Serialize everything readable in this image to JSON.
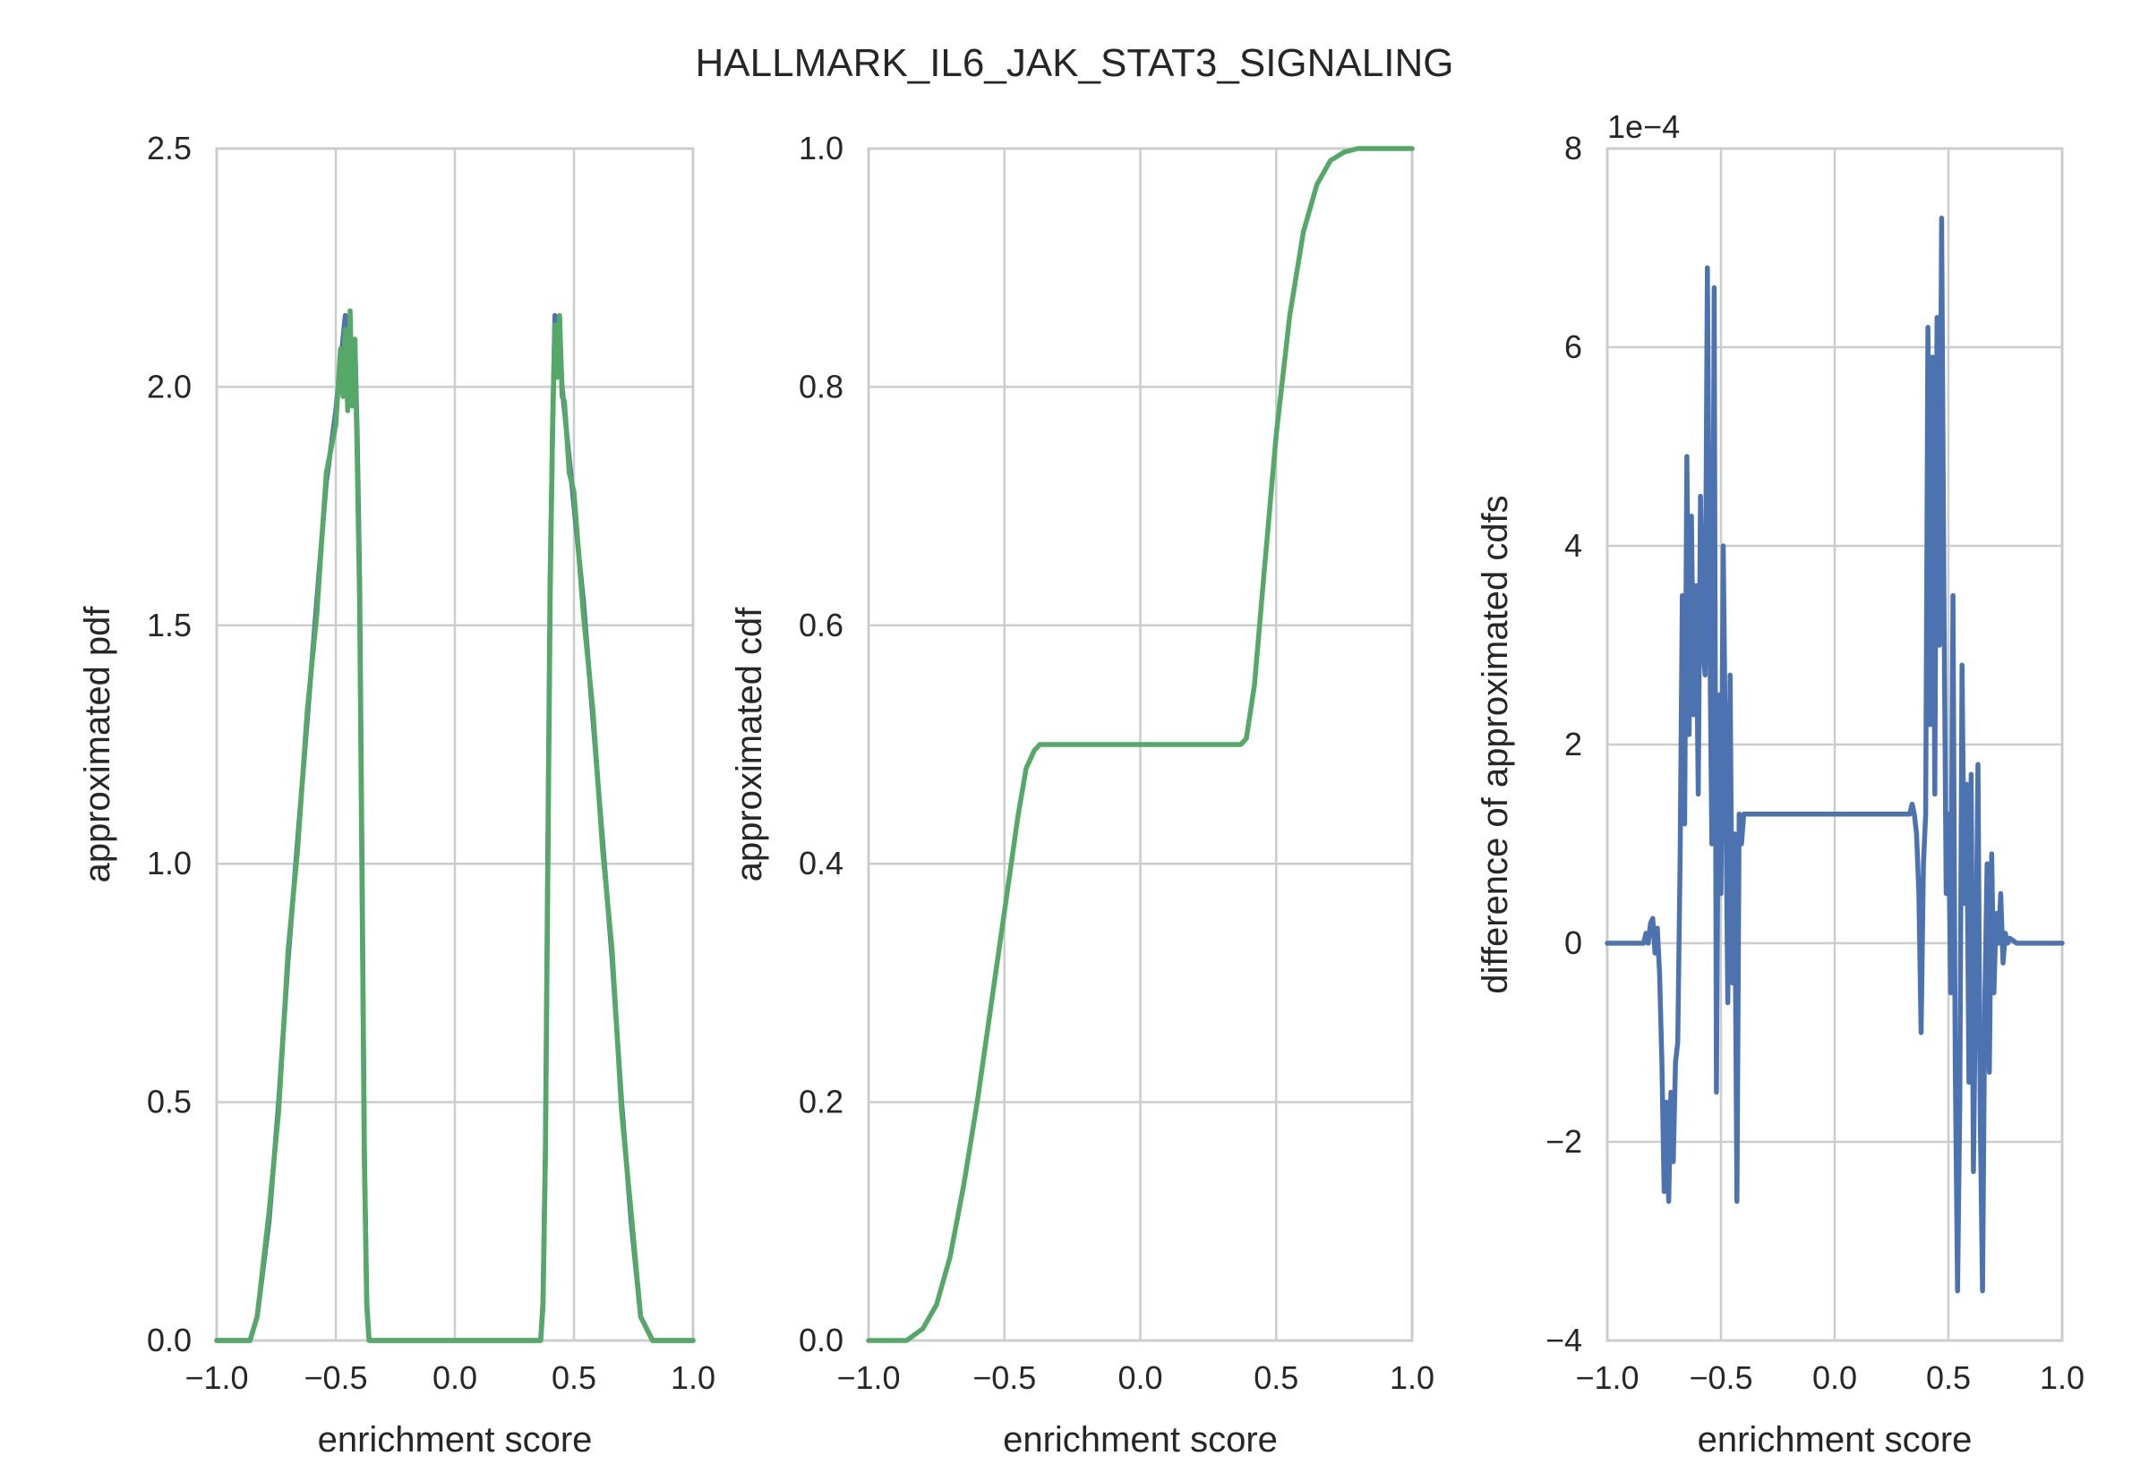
{
  "figure": {
    "suptitle": "HALLMARK_IL6_JAK_STAT3_SIGNALING"
  },
  "colors": {
    "blue": "#4c72b0",
    "green": "#55a868",
    "grid": "#cccccc",
    "text": "#262626"
  },
  "chart_data": [
    {
      "type": "line",
      "xlabel": "enrichment score",
      "ylabel": "approximated pdf",
      "xlim": [
        -1.0,
        1.0
      ],
      "ylim": [
        0.0,
        2.5
      ],
      "xticks": [
        "−1.0",
        "−0.5",
        "0.0",
        "0.5",
        "1.0"
      ],
      "yticks": [
        "0.0",
        "0.5",
        "1.0",
        "1.5",
        "2.0",
        "2.5"
      ],
      "grid": true,
      "series": [
        {
          "color": "#4c72b0",
          "x": [
            -1.0,
            -0.86,
            -0.83,
            -0.78,
            -0.74,
            -0.7,
            -0.66,
            -0.62,
            -0.58,
            -0.54,
            -0.5,
            -0.48,
            -0.46,
            -0.45,
            -0.44,
            -0.43,
            -0.42,
            -0.41,
            -0.4,
            -0.39,
            -0.38,
            -0.37,
            -0.36,
            -0.34,
            0.34,
            0.36,
            0.37,
            0.38,
            0.39,
            0.4,
            0.41,
            0.42,
            0.43,
            0.44,
            0.45,
            0.46,
            0.48,
            0.5,
            0.54,
            0.58,
            0.62,
            0.66,
            0.7,
            0.74,
            0.78,
            0.83,
            0.86,
            1.0
          ],
          "y": [
            0.0,
            0.0,
            0.05,
            0.25,
            0.5,
            0.8,
            1.05,
            1.3,
            1.55,
            1.8,
            1.95,
            2.05,
            2.15,
            2.05,
            2.12,
            1.98,
            2.1,
            1.9,
            1.6,
            1.0,
            0.4,
            0.08,
            0.0,
            0.0,
            0.0,
            0.0,
            0.08,
            0.4,
            1.0,
            1.6,
            1.9,
            2.15,
            2.05,
            2.12,
            2.0,
            1.95,
            1.85,
            1.75,
            1.55,
            1.3,
            1.05,
            0.8,
            0.5,
            0.25,
            0.05,
            0.0,
            0.0,
            0.0
          ]
        },
        {
          "color": "#55a868",
          "x": [
            -1.0,
            -0.86,
            -0.83,
            -0.78,
            -0.74,
            -0.7,
            -0.66,
            -0.62,
            -0.58,
            -0.54,
            -0.5,
            -0.48,
            -0.47,
            -0.46,
            -0.45,
            -0.44,
            -0.43,
            -0.42,
            -0.41,
            -0.4,
            -0.39,
            -0.38,
            -0.37,
            -0.36,
            -0.34,
            0.34,
            0.36,
            0.37,
            0.38,
            0.39,
            0.4,
            0.41,
            0.42,
            0.43,
            0.44,
            0.45,
            0.46,
            0.48,
            0.5,
            0.54,
            0.58,
            0.62,
            0.66,
            0.7,
            0.74,
            0.78,
            0.83,
            0.86,
            1.0
          ],
          "y": [
            0.0,
            0.0,
            0.05,
            0.27,
            0.48,
            0.82,
            1.03,
            1.32,
            1.52,
            1.82,
            1.92,
            2.08,
            1.98,
            2.12,
            1.95,
            2.16,
            1.96,
            2.1,
            1.85,
            1.55,
            0.95,
            0.38,
            0.07,
            0.0,
            0.0,
            0.0,
            0.0,
            0.07,
            0.38,
            0.95,
            1.55,
            1.92,
            2.13,
            2.02,
            2.15,
            1.98,
            1.97,
            1.82,
            1.78,
            1.52,
            1.32,
            1.03,
            0.82,
            0.48,
            0.27,
            0.05,
            0.0,
            0.0,
            0.0
          ]
        }
      ]
    },
    {
      "type": "line",
      "xlabel": "enrichment score",
      "ylabel": "approximated cdf",
      "xlim": [
        -1.0,
        1.0
      ],
      "ylim": [
        0.0,
        1.0
      ],
      "xticks": [
        "−1.0",
        "−0.5",
        "0.0",
        "0.5",
        "1.0"
      ],
      "yticks": [
        "0.0",
        "0.2",
        "0.4",
        "0.6",
        "0.8",
        "1.0"
      ],
      "grid": true,
      "series": [
        {
          "color": "#55a868",
          "x": [
            -1.0,
            -0.86,
            -0.8,
            -0.75,
            -0.7,
            -0.65,
            -0.6,
            -0.55,
            -0.5,
            -0.45,
            -0.42,
            -0.39,
            -0.37,
            -0.35,
            -0.33,
            0.35,
            0.37,
            0.39,
            0.42,
            0.45,
            0.5,
            0.55,
            0.6,
            0.65,
            0.7,
            0.75,
            0.8,
            0.86,
            1.0
          ],
          "y": [
            0.0,
            0.0,
            0.01,
            0.03,
            0.07,
            0.13,
            0.2,
            0.28,
            0.36,
            0.44,
            0.48,
            0.495,
            0.5,
            0.5,
            0.5,
            0.5,
            0.5,
            0.505,
            0.55,
            0.63,
            0.76,
            0.86,
            0.93,
            0.97,
            0.99,
            0.997,
            1.0,
            1.0,
            1.0
          ]
        }
      ]
    },
    {
      "type": "line",
      "xlabel": "enrichment score",
      "ylabel": "difference of approximated cdfs",
      "offset_label": "1e−4",
      "xlim": [
        -1.0,
        1.0
      ],
      "ylim": [
        -4,
        8
      ],
      "xticks": [
        "−1.0",
        "−0.5",
        "0.0",
        "0.5",
        "1.0"
      ],
      "yticks": [
        "−4",
        "−2",
        "0",
        "2",
        "4",
        "6",
        "8"
      ],
      "grid": true,
      "series": [
        {
          "color": "#4c72b0",
          "x": [
            -1.0,
            -0.84,
            -0.83,
            -0.82,
            -0.81,
            -0.8,
            -0.79,
            -0.78,
            -0.77,
            -0.76,
            -0.75,
            -0.74,
            -0.73,
            -0.72,
            -0.71,
            -0.7,
            -0.69,
            -0.68,
            -0.67,
            -0.66,
            -0.65,
            -0.64,
            -0.63,
            -0.62,
            -0.61,
            -0.6,
            -0.59,
            -0.58,
            -0.57,
            -0.56,
            -0.55,
            -0.54,
            -0.53,
            -0.52,
            -0.51,
            -0.5,
            -0.49,
            -0.48,
            -0.47,
            -0.46,
            -0.45,
            -0.44,
            -0.43,
            -0.42,
            -0.41,
            -0.4,
            -0.39,
            -0.38,
            -0.36,
            0.33,
            0.34,
            0.35,
            0.36,
            0.37,
            0.38,
            0.39,
            0.4,
            0.41,
            0.42,
            0.43,
            0.44,
            0.45,
            0.46,
            0.47,
            0.48,
            0.49,
            0.5,
            0.51,
            0.52,
            0.53,
            0.54,
            0.55,
            0.56,
            0.57,
            0.58,
            0.59,
            0.6,
            0.61,
            0.62,
            0.63,
            0.64,
            0.65,
            0.66,
            0.67,
            0.68,
            0.69,
            0.7,
            0.71,
            0.72,
            0.73,
            0.74,
            0.75,
            0.76,
            0.77,
            0.8,
            1.0
          ],
          "y": [
            0.0,
            0.0,
            0.1,
            0.0,
            0.2,
            0.25,
            -0.1,
            0.15,
            -0.3,
            -1.2,
            -2.5,
            -1.6,
            -2.6,
            -1.5,
            -2.2,
            -1.2,
            -1.0,
            0.8,
            3.5,
            1.2,
            4.9,
            2.1,
            4.3,
            2.3,
            3.6,
            1.5,
            4.5,
            3.0,
            2.7,
            6.8,
            3.3,
            1.0,
            6.6,
            -1.5,
            2.5,
            0.5,
            4.0,
            1.8,
            -0.6,
            2.7,
            -0.4,
            1.1,
            -2.6,
            1.3,
            1.0,
            1.3,
            1.3,
            1.3,
            1.3,
            1.3,
            1.4,
            1.3,
            1.1,
            0.5,
            -0.9,
            0.8,
            1.3,
            6.2,
            2.2,
            5.9,
            1.5,
            6.3,
            3.0,
            7.3,
            3.6,
            0.5,
            1.3,
            -0.5,
            3.5,
            -1.2,
            -3.5,
            -1.6,
            2.8,
            0.4,
            1.6,
            -1.4,
            1.7,
            -2.3,
            -0.3,
            1.8,
            -1.8,
            -3.5,
            -0.6,
            0.8,
            -1.3,
            0.9,
            -0.5,
            0.3,
            0.0,
            0.5,
            -0.2,
            0.1,
            0.0,
            0.05,
            0.0,
            0.0
          ]
        }
      ]
    }
  ]
}
